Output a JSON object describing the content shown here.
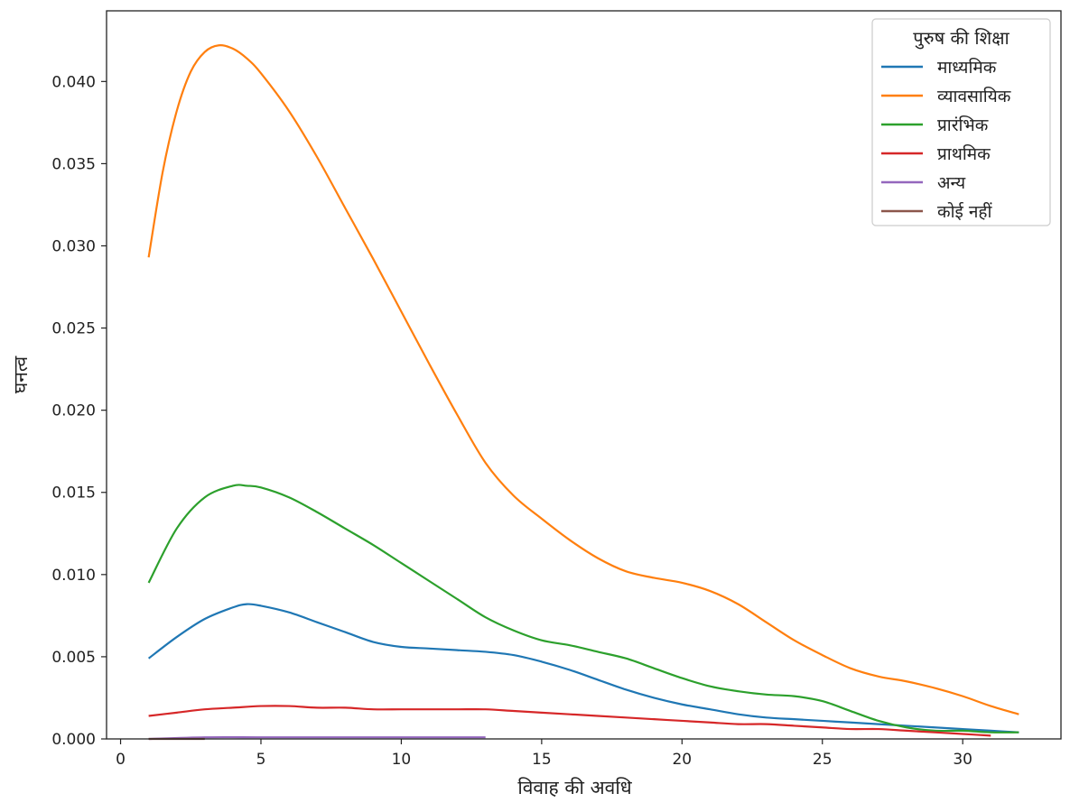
{
  "chart_data": {
    "type": "line",
    "xlabel": "विवाह की अवधि",
    "ylabel": "घनत्व",
    "xlim": [
      -0.5,
      33.5
    ],
    "ylim": [
      0,
      0.0443
    ],
    "xticks": [
      0,
      5,
      10,
      15,
      20,
      25,
      30
    ],
    "yticks": [
      0.0,
      0.005,
      0.01,
      0.015,
      0.02,
      0.025,
      0.03,
      0.035,
      0.04
    ],
    "xtick_labels": [
      "0",
      "5",
      "10",
      "15",
      "20",
      "25",
      "30"
    ],
    "ytick_labels": [
      "0.000",
      "0.005",
      "0.010",
      "0.015",
      "0.020",
      "0.025",
      "0.030",
      "0.035",
      "0.040"
    ],
    "grid": false,
    "legend": {
      "title": "पुरुष की शिक्षा",
      "placement": "top-right"
    },
    "series": [
      {
        "name": "माध्यमिक",
        "color": "#1f77b4",
        "x": [
          1,
          2,
          3,
          4,
          4.5,
          5,
          6,
          7,
          8,
          9,
          10,
          11,
          12,
          13,
          14,
          15,
          16,
          17,
          18,
          19,
          20,
          21,
          22,
          23,
          24,
          25,
          26,
          27,
          28,
          29,
          30,
          31,
          32
        ],
        "y": [
          0.0049,
          0.0062,
          0.0073,
          0.008,
          0.0082,
          0.0081,
          0.0077,
          0.0071,
          0.0065,
          0.0059,
          0.0056,
          0.0055,
          0.0054,
          0.0053,
          0.0051,
          0.0047,
          0.0042,
          0.0036,
          0.003,
          0.0025,
          0.0021,
          0.0018,
          0.0015,
          0.0013,
          0.0012,
          0.0011,
          0.001,
          0.0009,
          0.0008,
          0.0007,
          0.0006,
          0.0005,
          0.0004
        ]
      },
      {
        "name": "व्यावसायिक",
        "color": "#ff7f0e",
        "x": [
          1,
          1.5,
          2,
          2.5,
          3,
          3.5,
          4,
          4.5,
          5,
          6,
          7,
          8,
          9,
          10,
          11,
          12,
          13,
          14,
          15,
          16,
          17,
          18,
          19,
          20,
          21,
          22,
          23,
          24,
          25,
          26,
          27,
          28,
          29,
          30,
          31,
          32
        ],
        "y": [
          0.0293,
          0.0345,
          0.0382,
          0.0406,
          0.0418,
          0.0422,
          0.042,
          0.0414,
          0.0405,
          0.0382,
          0.0354,
          0.0323,
          0.0292,
          0.026,
          0.0228,
          0.0197,
          0.0168,
          0.0148,
          0.0134,
          0.0121,
          0.011,
          0.0102,
          0.0098,
          0.0095,
          0.009,
          0.0082,
          0.0071,
          0.006,
          0.0051,
          0.0043,
          0.0038,
          0.0035,
          0.0031,
          0.0026,
          0.002,
          0.0015
        ]
      },
      {
        "name": "प्रारंभिक",
        "color": "#2ca02c",
        "x": [
          1,
          2,
          3,
          4,
          4.5,
          5,
          6,
          7,
          8,
          9,
          10,
          11,
          12,
          13,
          14,
          15,
          16,
          17,
          18,
          19,
          20,
          21,
          22,
          23,
          24,
          25,
          26,
          27,
          28,
          29,
          30,
          31,
          32
        ],
        "y": [
          0.0095,
          0.0128,
          0.0147,
          0.0154,
          0.0154,
          0.0153,
          0.0147,
          0.0138,
          0.0128,
          0.0118,
          0.0107,
          0.0096,
          0.0085,
          0.0074,
          0.0066,
          0.006,
          0.0057,
          0.0053,
          0.0049,
          0.0043,
          0.0037,
          0.0032,
          0.0029,
          0.0027,
          0.0026,
          0.0023,
          0.0017,
          0.0011,
          0.0007,
          0.0005,
          0.0005,
          0.0004,
          0.0004
        ]
      },
      {
        "name": "प्राथमिक",
        "color": "#d62728",
        "x": [
          1,
          2,
          3,
          4,
          5,
          6,
          7,
          8,
          9,
          10,
          11,
          12,
          13,
          14,
          15,
          16,
          17,
          18,
          19,
          20,
          21,
          22,
          23,
          24,
          25,
          26,
          27,
          28,
          29,
          30,
          31
        ],
        "y": [
          0.0014,
          0.0016,
          0.0018,
          0.0019,
          0.002,
          0.002,
          0.0019,
          0.0019,
          0.0018,
          0.0018,
          0.0018,
          0.0018,
          0.0018,
          0.0017,
          0.0016,
          0.0015,
          0.0014,
          0.0013,
          0.0012,
          0.0011,
          0.001,
          0.0009,
          0.0009,
          0.0008,
          0.0007,
          0.0006,
          0.0006,
          0.0005,
          0.0004,
          0.0003,
          0.0002
        ]
      },
      {
        "name": "अन्य",
        "color": "#9467bd",
        "x": [
          1,
          3,
          5,
          7,
          9,
          11,
          13
        ],
        "y": [
          0.0,
          0.0001,
          0.0001,
          0.0001,
          0.0001,
          0.0001,
          0.0001
        ]
      },
      {
        "name": "कोई नहीं",
        "color": "#8c564b",
        "x": [
          1,
          2,
          3
        ],
        "y": [
          0.0,
          0.0,
          0.0
        ]
      }
    ]
  }
}
